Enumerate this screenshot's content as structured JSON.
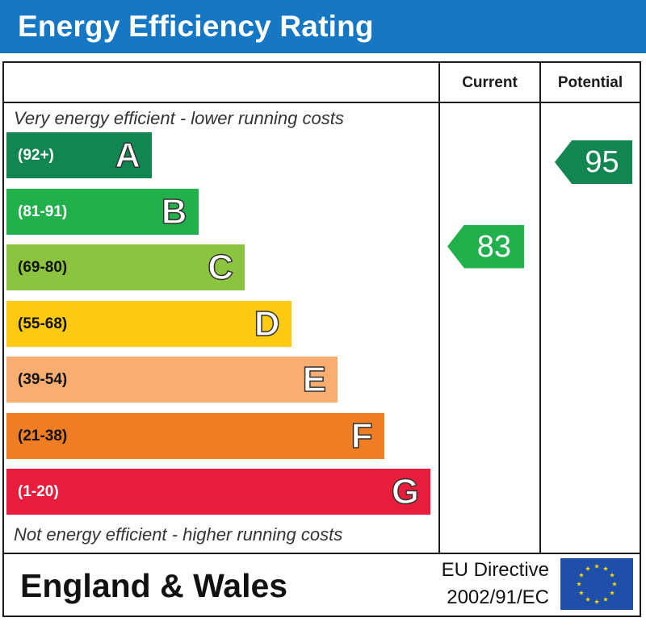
{
  "title": "Energy Efficiency Rating",
  "headers": {
    "current": "Current",
    "potential": "Potential"
  },
  "captions": {
    "top": "Very energy efficient - lower running costs",
    "bottom": "Not energy efficient - higher running costs"
  },
  "footer": {
    "region": "England & Wales",
    "directive_line1": "EU Directive",
    "directive_line2": "2002/91/EC"
  },
  "chart_data": {
    "type": "bar",
    "categories": [
      "A",
      "B",
      "C",
      "D",
      "E",
      "F",
      "G"
    ],
    "ranges": [
      "(92+)",
      "(81-91)",
      "(69-80)",
      "(55-68)",
      "(39-54)",
      "(21-38)",
      "(1-20)"
    ],
    "colors": [
      "#118650",
      "#21b04b",
      "#8cc43f",
      "#fecb12",
      "#f8ae71",
      "#ef7d24",
      "#e71d3b"
    ],
    "range_text_colors": [
      "#ffffff",
      "#ffffff",
      "#111111",
      "#111111",
      "#111111",
      "#111111",
      "#ffffff"
    ],
    "current": {
      "value": 83,
      "band": "B",
      "color": "#21b04b"
    },
    "potential": {
      "value": 95,
      "band": "A",
      "color": "#118650"
    }
  }
}
